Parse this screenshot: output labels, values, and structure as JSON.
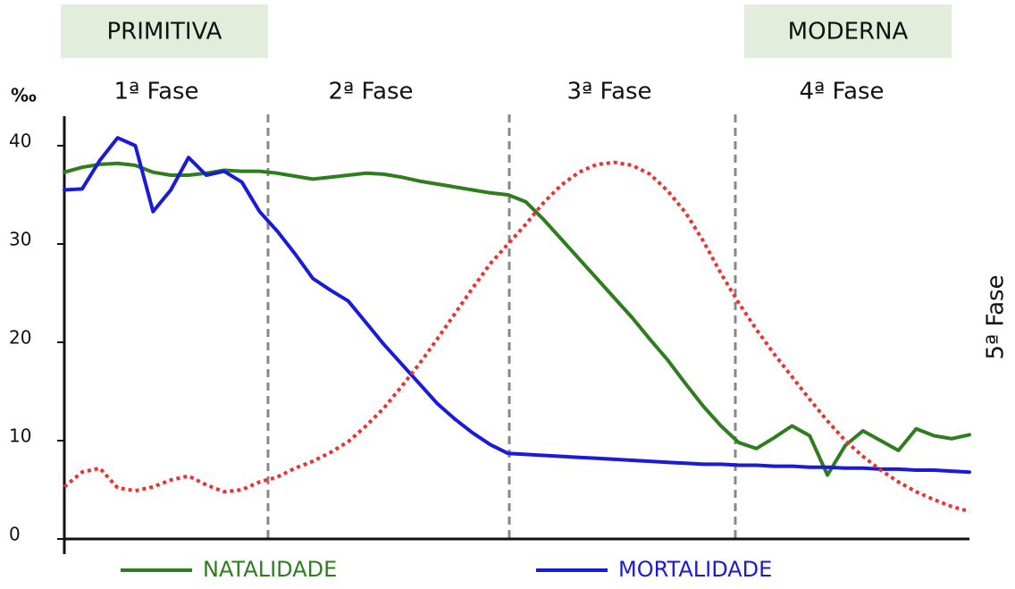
{
  "chart_data": {
    "type": "line",
    "annotations": {
      "stages": [
        "PRIMITIVA",
        "MODERNA"
      ],
      "phases": [
        "1ª Fase",
        "2ª Fase",
        "3ª Fase",
        "4ª Fase",
        "5ª Fase"
      ]
    },
    "ylabel": "‰",
    "categories": [
      null,
      null,
      null,
      null,
      null,
      null,
      null,
      null,
      null,
      null,
      null,
      null,
      null,
      null,
      null,
      null,
      null,
      null,
      null,
      null,
      null,
      null,
      null,
      null,
      null,
      null,
      null,
      null,
      null,
      null,
      null,
      null,
      null,
      null,
      null,
      null,
      null,
      null,
      null,
      null,
      null,
      null,
      null,
      null,
      null,
      null,
      null,
      null,
      null,
      null,
      null,
      null
    ],
    "series": [
      {
        "name": "NATALIDADE",
        "color": "#2e7d1e",
        "values": [
          37.3,
          37.8,
          38.1,
          38.2,
          38.0,
          37.3,
          37.0,
          37.0,
          37.2,
          37.5,
          37.4,
          37.4,
          37.2,
          36.9,
          36.6,
          36.8,
          37.0,
          37.2,
          37.1,
          36.8,
          36.4,
          36.1,
          35.8,
          35.5,
          35.2,
          35.0,
          34.3,
          32.5,
          30.5,
          28.5,
          26.5,
          24.5,
          22.5,
          20.3,
          18.2,
          15.8,
          13.5,
          11.5,
          9.8,
          9.2,
          10.3,
          11.5,
          10.5,
          6.5,
          9.5,
          11.0,
          10.0,
          9.0,
          11.2,
          10.5,
          10.2,
          10.6
        ]
      },
      {
        "name": "MORTALIDADE",
        "color": "#1a1adc",
        "values": [
          35.5,
          35.6,
          38.5,
          40.8,
          40.0,
          33.3,
          35.5,
          38.8,
          37.0,
          37.4,
          36.3,
          33.3,
          31.3,
          29.0,
          26.5,
          25.3,
          24.2,
          22.0,
          19.8,
          17.8,
          15.8,
          13.8,
          12.2,
          10.8,
          9.6,
          8.7,
          8.6,
          8.5,
          8.4,
          8.3,
          8.2,
          8.1,
          8.0,
          7.9,
          7.8,
          7.7,
          7.6,
          7.6,
          7.5,
          7.5,
          7.4,
          7.4,
          7.3,
          7.3,
          7.2,
          7.2,
          7.1,
          7.1,
          7.0,
          7.0,
          6.9,
          6.8
        ]
      },
      {
        "color": "#f03030",
        "dash": "dotted",
        "values": [
          5.3,
          6.8,
          7.2,
          5.2,
          4.9,
          5.3,
          6.0,
          6.4,
          5.5,
          4.8,
          5.0,
          5.8,
          6.3,
          7.2,
          7.9,
          8.8,
          9.9,
          11.5,
          13.3,
          15.5,
          17.8,
          20.3,
          22.9,
          25.5,
          28.0,
          30.0,
          32.0,
          34.2,
          36.0,
          37.3,
          38.1,
          38.3,
          38.0,
          37.1,
          35.4,
          33.2,
          30.3,
          27.0,
          24.0,
          21.3,
          18.8,
          16.5,
          14.2,
          12.0,
          10.0,
          8.4,
          7.0,
          5.8,
          4.8,
          4.0,
          3.3,
          2.8
        ]
      }
    ],
    "ylim": [
      0,
      43
    ],
    "yticks": [
      0,
      10,
      20,
      30,
      40
    ]
  }
}
